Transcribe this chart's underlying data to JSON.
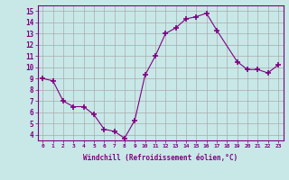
{
  "x": [
    0,
    1,
    2,
    3,
    4,
    5,
    6,
    7,
    8,
    9,
    10,
    11,
    12,
    13,
    14,
    15,
    16,
    17,
    19,
    20,
    21,
    22,
    23
  ],
  "y": [
    9.0,
    8.8,
    7.0,
    6.5,
    6.5,
    5.8,
    4.5,
    4.3,
    3.7,
    5.3,
    9.3,
    11.0,
    13.0,
    13.5,
    14.3,
    14.5,
    14.8,
    13.3,
    10.5,
    9.8,
    9.8,
    9.5,
    10.2
  ],
  "line_color": "#800080",
  "marker": "+",
  "marker_size": 4,
  "bg_color": "#c8e8e8",
  "grid_color": "#aaaaaa",
  "xlabel": "Windchill (Refroidissement éolien,°C)",
  "xlabel_color": "#800080",
  "tick_color": "#800080",
  "ylim": [
    3.5,
    15.5
  ],
  "xlim": [
    -0.5,
    23.5
  ],
  "yticks": [
    4,
    5,
    6,
    7,
    8,
    9,
    10,
    11,
    12,
    13,
    14,
    15
  ],
  "xticks": [
    0,
    1,
    2,
    3,
    4,
    5,
    6,
    7,
    8,
    9,
    10,
    11,
    12,
    13,
    14,
    15,
    16,
    17,
    18,
    19,
    20,
    21,
    22,
    23
  ],
  "xtick_labels": [
    "0",
    "1",
    "2",
    "3",
    "4",
    "5",
    "6",
    "7",
    "8",
    "9",
    "10",
    "11",
    "12",
    "13",
    "14",
    "15",
    "16",
    "17",
    "18",
    "19",
    "20",
    "21",
    "22",
    "23"
  ]
}
